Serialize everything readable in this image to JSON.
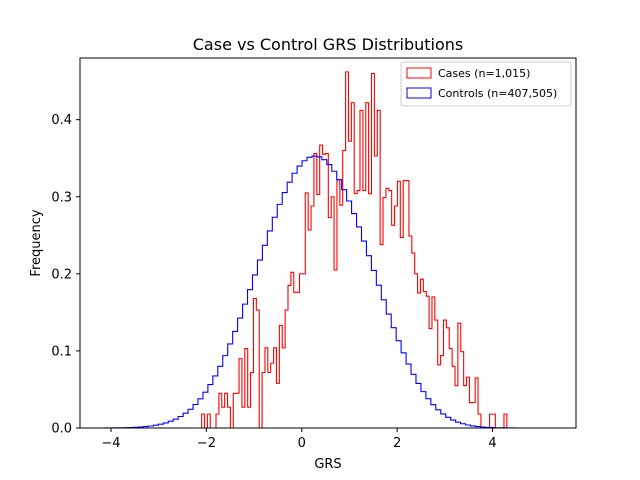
{
  "chart_data": {
    "type": "histogram",
    "title": "Case vs Control GRS Distributions",
    "xlabel": "GRS",
    "ylabel": "Frequency",
    "xlim": [
      -4.65,
      5.75
    ],
    "ylim": [
      0,
      0.48
    ],
    "xticks": [
      -4,
      -2,
      0,
      2,
      4
    ],
    "xtick_labels": [
      "−4",
      "−2",
      "0",
      "2",
      "4"
    ],
    "yticks": [
      0.0,
      0.1,
      0.2,
      0.3,
      0.4
    ],
    "ytick_labels": [
      "0.0",
      "0.1",
      "0.2",
      "0.3",
      "0.4"
    ],
    "legend_position": "upper right",
    "series": [
      {
        "name": "Cases (n=1,015)",
        "color": "#ff0000",
        "bin_range": [
          -2.1,
          4.3
        ],
        "values": [
          0.018,
          0.0,
          0.018,
          0.0,
          0.0,
          0.018,
          0.045,
          0.027,
          0.045,
          0.027,
          0.0,
          0.045,
          0.045,
          0.09,
          0.027,
          0.103,
          0.027,
          0.072,
          0.168,
          0.153,
          0.0,
          0.072,
          0.104,
          0.072,
          0.084,
          0.104,
          0.058,
          0.133,
          0.104,
          0.153,
          0.185,
          0.202,
          0.176,
          0.176,
          0.2,
          0.2,
          0.305,
          0.257,
          0.288,
          0.356,
          0.303,
          0.367,
          0.355,
          0.356,
          0.273,
          0.3,
          0.205,
          0.322,
          0.289,
          0.36,
          0.462,
          0.372,
          0.422,
          0.304,
          0.308,
          0.412,
          0.308,
          0.422,
          0.304,
          0.46,
          0.353,
          0.412,
          0.238,
          0.299,
          0.311,
          0.308,
          0.263,
          0.288,
          0.32,
          0.247,
          0.321,
          0.321,
          0.249,
          0.227,
          0.2,
          0.175,
          0.193,
          0.177,
          0.171,
          0.129,
          0.17,
          0.14,
          0.082,
          0.094,
          0.14,
          0.13,
          0.103,
          0.08,
          0.055,
          0.136,
          0.099,
          0.055,
          0.066,
          0.033,
          0.033,
          0.065,
          0.018,
          0.0,
          0.0,
          0.0,
          0.018,
          0.018,
          0.0,
          0.0,
          0.0,
          0.018
        ]
      },
      {
        "name": "Controls (n=407,505)",
        "color": "#0000ff",
        "bin_range": [
          -4.15,
          5.2
        ],
        "values": [
          0.0001,
          0.0001,
          0.0002,
          0.0003,
          0.0004,
          0.0006,
          0.0009,
          0.0013,
          0.0019,
          0.0026,
          0.0036,
          0.0049,
          0.0066,
          0.0088,
          0.0115,
          0.0149,
          0.0192,
          0.0243,
          0.0305,
          0.0378,
          0.0464,
          0.0563,
          0.0675,
          0.08,
          0.0939,
          0.109,
          0.1253,
          0.1426,
          0.1607,
          0.1795,
          0.1986,
          0.2179,
          0.237,
          0.2556,
          0.2734,
          0.2901,
          0.3054,
          0.3189,
          0.3305,
          0.3398,
          0.3467,
          0.3511,
          0.3528,
          0.3518,
          0.3481,
          0.3418,
          0.3331,
          0.3222,
          0.3092,
          0.2945,
          0.2782,
          0.2608,
          0.2425,
          0.2236,
          0.2044,
          0.1853,
          0.1663,
          0.1478,
          0.1301,
          0.1133,
          0.0975,
          0.083,
          0.0697,
          0.0578,
          0.0472,
          0.038,
          0.0302,
          0.0236,
          0.0182,
          0.0138,
          0.0103,
          0.0076,
          0.0055,
          0.0039,
          0.0027,
          0.0019,
          0.0013,
          0.0008,
          0.0005,
          0.0003,
          0.0002,
          0.0001,
          0.0001,
          0.0,
          0.0,
          0.0,
          0.0,
          0.0,
          0.0,
          0.0
        ]
      }
    ]
  }
}
